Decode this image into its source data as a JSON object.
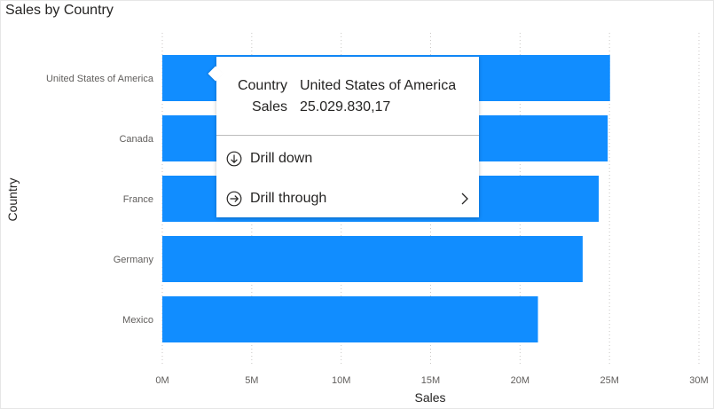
{
  "chart_data": {
    "type": "bar",
    "orientation": "horizontal",
    "title": "Sales by Country",
    "xlabel": "Sales",
    "ylabel": "Country",
    "categories": [
      "United States of America",
      "Canada",
      "France",
      "Germany",
      "Mexico"
    ],
    "values": [
      25029830.17,
      24900000,
      24400000,
      23500000,
      21000000
    ],
    "xlim": [
      0,
      30000000
    ],
    "x_ticks": [
      0,
      5000000,
      10000000,
      15000000,
      20000000,
      25000000,
      30000000
    ],
    "x_tick_labels": [
      "0M",
      "5M",
      "10M",
      "15M",
      "20M",
      "25M",
      "30M"
    ],
    "grid": "vertical-dotted",
    "bar_color": "#118dff"
  },
  "tooltip": {
    "rows": [
      {
        "key": "Country",
        "value": "United States of America"
      },
      {
        "key": "Sales",
        "value": "25.029.830,17"
      }
    ],
    "actions": [
      {
        "label": "Drill down",
        "icon": "arrow-down-circle-icon"
      },
      {
        "label": "Drill through",
        "icon": "arrow-right-circle-icon",
        "submenu": true
      }
    ]
  }
}
